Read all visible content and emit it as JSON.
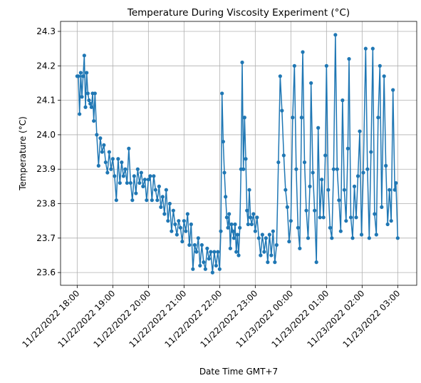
{
  "chart_data": {
    "type": "line",
    "title": "Temperature During Viscosity Experiment (°C)",
    "xlabel": "Date Time GMT+7",
    "ylabel": "Temperature (°C)",
    "grid": true,
    "xlim": [
      "2022-11-22T17:32",
      "2022-11-23T03:32"
    ],
    "ylim": [
      23.563,
      24.329
    ],
    "xticks": [
      {
        "value": "2022-11-22T18:00",
        "label": "11/22/2022 18:00"
      },
      {
        "value": "2022-11-22T19:00",
        "label": "11/22/2022 19:00"
      },
      {
        "value": "2022-11-22T20:00",
        "label": "11/22/2022 20:00"
      },
      {
        "value": "2022-11-22T21:00",
        "label": "11/22/2022 21:00"
      },
      {
        "value": "2022-11-22T22:00",
        "label": "11/22/2022 22:00"
      },
      {
        "value": "2022-11-22T23:00",
        "label": "11/22/2022 23:00"
      },
      {
        "value": "2022-11-23T00:00",
        "label": "11/23/2022 00:00"
      },
      {
        "value": "2022-11-23T01:00",
        "label": "11/23/2022 01:00"
      },
      {
        "value": "2022-11-23T02:00",
        "label": "11/23/2022 02:00"
      },
      {
        "value": "2022-11-23T03:00",
        "label": "11/23/2022 03:00"
      }
    ],
    "yticks": [
      23.6,
      23.7,
      23.8,
      23.9,
      {
        "value": 24,
        "label": "24.0"
      },
      24.1,
      24.2,
      24.3
    ],
    "x": [
      "2022-11-22T18:00",
      "2022-11-22T18:02",
      "2022-11-22T18:04",
      "2022-11-22T18:06",
      "2022-11-22T18:08",
      "2022-11-22T18:10",
      "2022-11-22T18:12",
      "2022-11-22T18:14",
      "2022-11-22T18:16",
      "2022-11-22T18:18",
      "2022-11-22T18:20",
      "2022-11-22T18:22",
      "2022-11-22T18:24",
      "2022-11-22T18:26",
      "2022-11-22T18:28",
      "2022-11-22T18:30",
      "2022-11-22T18:33",
      "2022-11-22T18:36",
      "2022-11-22T18:39",
      "2022-11-22T18:42",
      "2022-11-22T18:45",
      "2022-11-22T18:48",
      "2022-11-22T18:51",
      "2022-11-22T18:54",
      "2022-11-22T18:57",
      "2022-11-22T19:00",
      "2022-11-22T19:03",
      "2022-11-22T19:06",
      "2022-11-22T19:09",
      "2022-11-22T19:12",
      "2022-11-22T19:15",
      "2022-11-22T19:18",
      "2022-11-22T19:21",
      "2022-11-22T19:24",
      "2022-11-22T19:27",
      "2022-11-22T19:30",
      "2022-11-22T19:33",
      "2022-11-22T19:36",
      "2022-11-22T19:39",
      "2022-11-22T19:42",
      "2022-11-22T19:45",
      "2022-11-22T19:48",
      "2022-11-22T19:51",
      "2022-11-22T19:54",
      "2022-11-22T19:57",
      "2022-11-22T20:00",
      "2022-11-22T20:03",
      "2022-11-22T20:06",
      "2022-11-22T20:09",
      "2022-11-22T20:12",
      "2022-11-22T20:15",
      "2022-11-22T20:18",
      "2022-11-22T20:21",
      "2022-11-22T20:24",
      "2022-11-22T20:27",
      "2022-11-22T20:30",
      "2022-11-22T20:33",
      "2022-11-22T20:36",
      "2022-11-22T20:39",
      "2022-11-22T20:42",
      "2022-11-22T20:45",
      "2022-11-22T20:48",
      "2022-11-22T20:51",
      "2022-11-22T20:54",
      "2022-11-22T20:57",
      "2022-11-22T21:00",
      "2022-11-22T21:03",
      "2022-11-22T21:06",
      "2022-11-22T21:09",
      "2022-11-22T21:12",
      "2022-11-22T21:15",
      "2022-11-22T21:18",
      "2022-11-22T21:21",
      "2022-11-22T21:24",
      "2022-11-22T21:27",
      "2022-11-22T21:30",
      "2022-11-22T21:33",
      "2022-11-22T21:36",
      "2022-11-22T21:39",
      "2022-11-22T21:42",
      "2022-11-22T21:45",
      "2022-11-22T21:48",
      "2022-11-22T21:51",
      "2022-11-22T21:54",
      "2022-11-22T21:57",
      "2022-11-22T22:00",
      "2022-11-22T22:02",
      "2022-11-22T22:04",
      "2022-11-22T22:06",
      "2022-11-22T22:08",
      "2022-11-22T22:10",
      "2022-11-22T22:12",
      "2022-11-22T22:14",
      "2022-11-22T22:16",
      "2022-11-22T22:18",
      "2022-11-22T22:20",
      "2022-11-22T22:22",
      "2022-11-22T22:24",
      "2022-11-22T22:26",
      "2022-11-22T22:28",
      "2022-11-22T22:30",
      "2022-11-22T22:32",
      "2022-11-22T22:34",
      "2022-11-22T22:36",
      "2022-11-22T22:38",
      "2022-11-22T22:40",
      "2022-11-22T22:42",
      "2022-11-22T22:44",
      "2022-11-22T22:46",
      "2022-11-22T22:48",
      "2022-11-22T22:50",
      "2022-11-22T22:52",
      "2022-11-22T22:54",
      "2022-11-22T22:57",
      "2022-11-22T23:00",
      "2022-11-22T23:03",
      "2022-11-22T23:06",
      "2022-11-22T23:09",
      "2022-11-22T23:12",
      "2022-11-22T23:15",
      "2022-11-22T23:18",
      "2022-11-22T23:21",
      "2022-11-22T23:24",
      "2022-11-22T23:27",
      "2022-11-22T23:30",
      "2022-11-22T23:33",
      "2022-11-22T23:36",
      "2022-11-22T23:39",
      "2022-11-22T23:42",
      "2022-11-22T23:45",
      "2022-11-22T23:48",
      "2022-11-22T23:51",
      "2022-11-22T23:54",
      "2022-11-22T23:57",
      "2022-11-23T00:00",
      "2022-11-23T00:03",
      "2022-11-23T00:06",
      "2022-11-23T00:09",
      "2022-11-23T00:12",
      "2022-11-23T00:15",
      "2022-11-23T00:18",
      "2022-11-23T00:20",
      "2022-11-23T00:23",
      "2022-11-23T00:26",
      "2022-11-23T00:29",
      "2022-11-23T00:32",
      "2022-11-23T00:34",
      "2022-11-23T00:37",
      "2022-11-23T00:40",
      "2022-11-23T00:43",
      "2022-11-23T00:46",
      "2022-11-23T00:49",
      "2022-11-23T00:52",
      "2022-11-23T00:55",
      "2022-11-23T00:58",
      "2022-11-23T01:00",
      "2022-11-23T01:03",
      "2022-11-23T01:06",
      "2022-11-23T01:09",
      "2022-11-23T01:12",
      "2022-11-23T01:15",
      "2022-11-23T01:18",
      "2022-11-23T01:21",
      "2022-11-23T01:24",
      "2022-11-23T01:27",
      "2022-11-23T01:30",
      "2022-11-23T01:33",
      "2022-11-23T01:36",
      "2022-11-23T01:38",
      "2022-11-23T01:41",
      "2022-11-23T01:44",
      "2022-11-23T01:47",
      "2022-11-23T01:50",
      "2022-11-23T01:53",
      "2022-11-23T01:56",
      "2022-11-23T01:59",
      "2022-11-23T02:02",
      "2022-11-23T02:06",
      "2022-11-23T02:09",
      "2022-11-23T02:12",
      "2022-11-23T02:15",
      "2022-11-23T02:18",
      "2022-11-23T02:21",
      "2022-11-23T02:24",
      "2022-11-23T02:27",
      "2022-11-23T02:30",
      "2022-11-23T02:33",
      "2022-11-23T02:37",
      "2022-11-23T02:40",
      "2022-11-23T02:43",
      "2022-11-23T02:46",
      "2022-11-23T02:49",
      "2022-11-23T02:52",
      "2022-11-23T02:55",
      "2022-11-23T02:57",
      "2022-11-23T03:00"
    ],
    "series": [
      {
        "color": "#1f77b4",
        "values": [
          24.17,
          24.17,
          24.06,
          24.18,
          24.11,
          24.17,
          24.23,
          24.08,
          24.18,
          24.12,
          24.1,
          24.09,
          24.08,
          24.12,
          24.04,
          24.12,
          24.0,
          23.91,
          23.99,
          23.95,
          23.97,
          23.92,
          23.89,
          23.95,
          23.9,
          23.93,
          23.88,
          23.81,
          23.93,
          23.86,
          23.92,
          23.88,
          23.9,
          23.86,
          23.96,
          23.86,
          23.81,
          23.88,
          23.83,
          23.9,
          23.86,
          23.89,
          23.85,
          23.87,
          23.81,
          23.87,
          23.88,
          23.81,
          23.88,
          23.84,
          23.81,
          23.85,
          23.79,
          23.82,
          23.77,
          23.84,
          23.75,
          23.8,
          23.72,
          23.78,
          23.74,
          23.71,
          23.75,
          23.73,
          23.69,
          23.75,
          23.72,
          23.77,
          23.68,
          23.74,
          23.61,
          23.68,
          23.66,
          23.7,
          23.62,
          23.68,
          23.63,
          23.61,
          23.67,
          23.64,
          23.66,
          23.6,
          23.66,
          23.62,
          23.66,
          23.61,
          23.72,
          24.12,
          23.98,
          23.89,
          23.82,
          23.76,
          23.73,
          23.77,
          23.67,
          23.74,
          23.72,
          23.7,
          23.74,
          23.66,
          23.71,
          23.65,
          23.73,
          23.9,
          24.21,
          23.9,
          24.05,
          23.93,
          23.78,
          23.74,
          23.84,
          23.76,
          23.74,
          23.77,
          23.72,
          23.76,
          23.7,
          23.65,
          23.71,
          23.66,
          23.7,
          23.63,
          23.71,
          23.65,
          23.72,
          23.63,
          23.68,
          23.92,
          24.17,
          24.07,
          23.94,
          23.84,
          23.79,
          23.69,
          23.75,
          24.05,
          24.2,
          23.9,
          23.73,
          23.67,
          24.05,
          24.24,
          23.92,
          23.78,
          23.7,
          23.85,
          24.15,
          23.89,
          23.78,
          23.63,
          24.02,
          23.76,
          23.87,
          23.76,
          23.94,
          24.2,
          23.84,
          23.73,
          23.7,
          23.9,
          24.29,
          23.9,
          23.81,
          23.72,
          24.1,
          23.84,
          23.75,
          23.96,
          24.22,
          23.76,
          23.7,
          23.85,
          23.76,
          23.88,
          24.01,
          23.71,
          23.89,
          24.25,
          23.9,
          23.7,
          23.95,
          24.25,
          23.77,
          23.71,
          24.05,
          24.2,
          23.79,
          24.17,
          23.91,
          23.74,
          23.84,
          23.75,
          24.13,
          23.84,
          23.86,
          23.7
        ]
      }
    ]
  }
}
